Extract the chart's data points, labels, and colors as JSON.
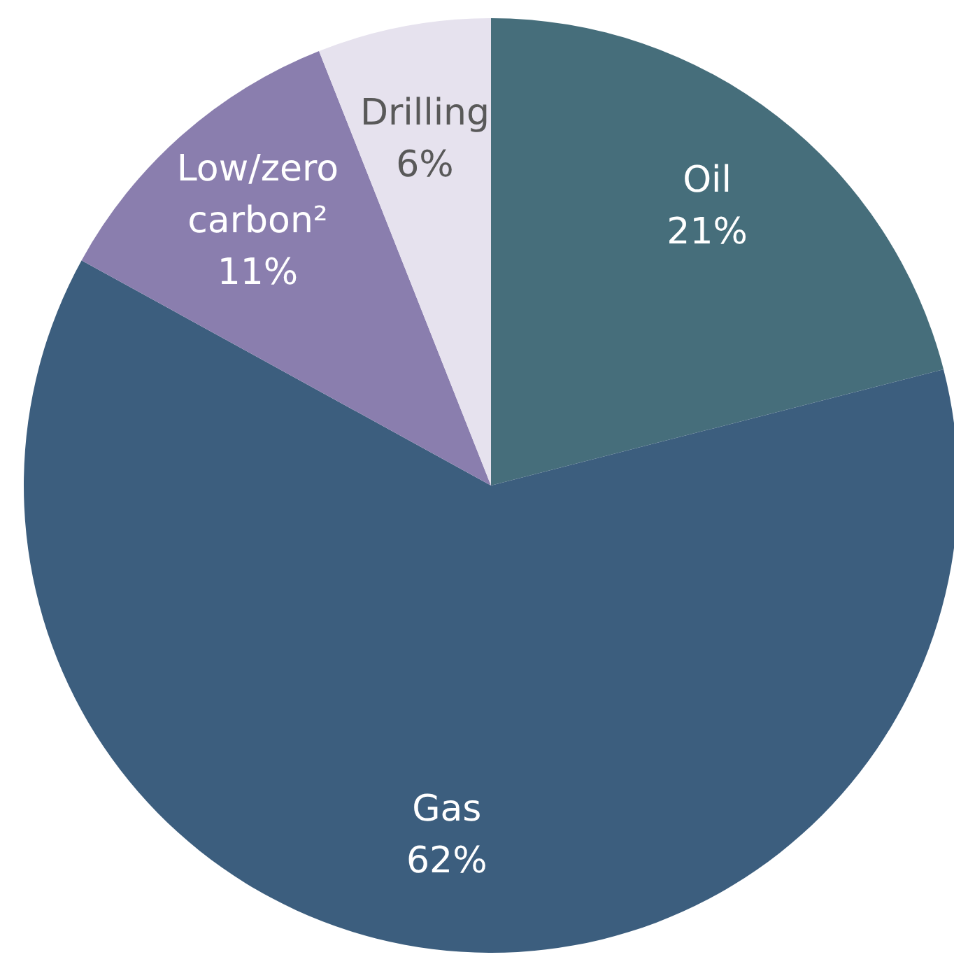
{
  "chart_data": {
    "type": "pie",
    "categories": [
      "Oil",
      "Gas",
      "Low/zero carbon²",
      "Drilling"
    ],
    "values": [
      21,
      62,
      11,
      6
    ],
    "value_labels": [
      "21%",
      "62%",
      "11%",
      "6%"
    ],
    "colors": [
      "#466e7b",
      "#3c5e7e",
      "#8a7eae",
      "#e6e2ee"
    ]
  }
}
